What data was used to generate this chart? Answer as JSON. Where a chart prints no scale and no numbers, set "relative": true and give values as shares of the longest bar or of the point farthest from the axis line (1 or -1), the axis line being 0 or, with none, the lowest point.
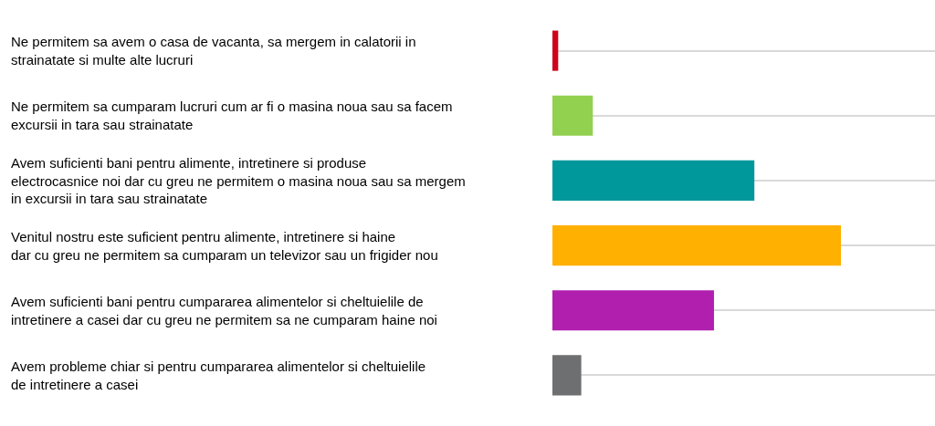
{
  "chart_data": {
    "type": "bar",
    "orientation": "horizontal",
    "relative": true,
    "grid": "y",
    "categories": [
      "Ne permitem sa avem o casa de vacanta, sa mergem in calatorii in strainatate si multe alte lucruri",
      "Ne permitem sa cumparam lucruri cum ar fi o masina noua sau sa facem excursii in tara sau strainatate",
      "Avem suficienti bani pentru alimente, intretinere si produse electrocasnice noi dar cu greu ne permitem o masina noua sau sa mergem in excursii in tara sau strainatate",
      "Venitul nostru este suficient pentru alimente, intretinere si haine dar cu greu ne permitem sa cumparam un televizor sau un frigider nou",
      "Avem suficienti bani pentru cumpararea alimentelor si cheltuielile de intretinere a casei dar cu greu ne permitem sa ne cumparam haine noi",
      "Avem probleme chiar si pentru cumpararea alimentelor si cheltuielile de intretinere a casei"
    ],
    "values": [
      0.02,
      0.14,
      0.7,
      1,
      0.56,
      0.1
    ],
    "colors": [
      "#d0021b",
      "#92d050",
      "#00989a",
      "#ffb000",
      "#b01fad",
      "#6e6f71"
    ]
  }
}
